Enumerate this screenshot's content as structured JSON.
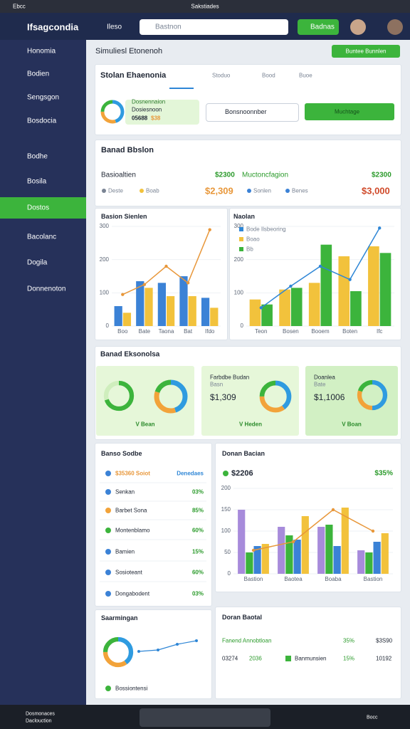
{
  "window": {
    "title_left": "Ebcc",
    "title_center": "Sakstiades"
  },
  "header": {
    "logo": "Ifsagcondia",
    "menu": "Ileso",
    "search_placeholder": "Bastnon",
    "button": "Badnas"
  },
  "sidebar": {
    "items": [
      "Honomia",
      "Bodien",
      "Sengsgon",
      "Bosdocia",
      "Bodhe",
      "Bosila",
      "Dostos",
      "Bacolanc",
      "Dogila",
      "Donnenoton"
    ],
    "active": 6
  },
  "page": {
    "title": "Simuliesl Etonenoh",
    "button": "Buntee Bunnlen"
  },
  "filter_card": {
    "tabs": [
      "Stolan Ehaenonia",
      "Stoduo",
      "Bood",
      "Buoe"
    ],
    "summary": {
      "title": "Dosnennaion",
      "subtitle": "Dosiesnoon",
      "value": "05688",
      "badge": "$38"
    },
    "donut": {
      "type": "pie",
      "values": [
        45,
        30,
        25
      ],
      "colors": [
        "#2f9be0",
        "#f2a33a",
        "#3cb43c"
      ]
    },
    "select": "Bonsnoonnber",
    "button": "Muchtage"
  },
  "balance_card": {
    "title": "Banad Bbslon",
    "row": [
      "Basioaltien",
      "$2300",
      "Muctoncfagion",
      "$2300"
    ],
    "legend": [
      "Deste",
      "Boab",
      "Sonlen",
      "Benes"
    ],
    "amounts": [
      "$2,309",
      "$3,000"
    ]
  },
  "charts": {
    "left": {
      "type": "bar",
      "title": "Basion Sienlen",
      "categories": [
        "Boo",
        "Bate",
        "Taona",
        "Bat",
        "Ifdo"
      ],
      "ylim": [
        0,
        300
      ],
      "yticks": [
        0,
        100,
        200,
        300
      ],
      "series": [
        {
          "color": "#3b82d6",
          "values": [
            60,
            135,
            130,
            150,
            85
          ]
        },
        {
          "color": "#f2c23c",
          "values": [
            40,
            115,
            90,
            90,
            55
          ]
        },
        {
          "type": "line",
          "color": "#e8973a",
          "values": [
            95,
            125,
            180,
            130,
            290
          ]
        }
      ]
    },
    "right": {
      "type": "bar",
      "title": "Naolan",
      "categories": [
        "Teon",
        "Bosen",
        "Booem",
        "Boten",
        "Ifc"
      ],
      "ylim": [
        0,
        300
      ],
      "yticks": [
        0,
        100,
        200,
        300
      ],
      "series": [
        {
          "type": "line",
          "name": "Bode Ilsbeoring",
          "color": "#2e86d6",
          "values": [
            55,
            120,
            180,
            140,
            295
          ]
        },
        {
          "name": "Boao",
          "color": "#f2c23c",
          "values": [
            80,
            110,
            130,
            210,
            240
          ]
        },
        {
          "name": "Bb",
          "color": "#3cb43c",
          "values": [
            65,
            115,
            245,
            105,
            220
          ]
        }
      ]
    },
    "bottom": {
      "type": "bar",
      "title": "Donan Bacian",
      "value": "$2206",
      "change": "$35%",
      "categories": [
        "Bastion",
        "Baotea",
        "Boaba",
        "Bastion"
      ],
      "ylim": [
        0,
        200
      ],
      "yticks": [
        0,
        50,
        100,
        150,
        200
      ],
      "series": [
        {
          "color": "#a78bdb",
          "values": [
            150,
            110,
            110,
            55
          ]
        },
        {
          "color": "#3cb43c",
          "values": [
            50,
            90,
            115,
            50
          ]
        },
        {
          "color": "#3b82d6",
          "values": [
            65,
            80,
            65,
            75
          ]
        },
        {
          "color": "#f2c23c",
          "values": [
            70,
            135,
            155,
            95
          ]
        },
        {
          "type": "line",
          "color": "#e8973a",
          "values": [
            55,
            75,
            150,
            100
          ]
        }
      ]
    }
  },
  "overview_card": {
    "title": "Banad Eksonolsa",
    "cards": [
      {
        "label": "V Bean",
        "donuts": [
          {
            "type": "pie",
            "values": [
              70,
              30
            ],
            "colors": [
              "#3cb43c",
              "#cfeebd"
            ]
          },
          {
            "type": "pie",
            "values": [
              45,
              35,
              20
            ],
            "colors": [
              "#2f9be0",
              "#f2a33a",
              "#3cb43c"
            ]
          }
        ]
      },
      {
        "title": "Farbdbe Budan",
        "subtitle": "Basn",
        "value": "$1,309",
        "label": "V Heden",
        "donuts": [
          {
            "type": "pie",
            "values": [
              40,
              35,
              25
            ],
            "colors": [
              "#2f9be0",
              "#f2a33a",
              "#3cb43c"
            ]
          }
        ]
      },
      {
        "title": "Doanlea",
        "subtitle": "Bate",
        "value": "$1,1006",
        "label": "V Boan",
        "donuts": [
          {
            "type": "pie",
            "values": [
              50,
              30,
              20
            ],
            "colors": [
              "#2f9be0",
              "#f2a33a",
              "#3cb43c"
            ]
          }
        ]
      }
    ]
  },
  "list_card": {
    "title": "Banso Sodbe",
    "rows": [
      [
        "$35360 Soiot",
        "Denedaes"
      ],
      [
        "Senkan",
        "03%"
      ],
      [
        "Barbet Sona",
        "85%"
      ],
      [
        "Montenblamo",
        "60%"
      ],
      [
        "Bamien",
        "15%"
      ],
      [
        "Sosioteant",
        "60%"
      ],
      [
        "Dongabodent",
        "03%"
      ]
    ]
  },
  "summary_card": {
    "title": "Saarmingan",
    "text": "Bossiontensi",
    "donut": {
      "type": "pie",
      "values": [
        40,
        35,
        25
      ],
      "colors": [
        "#2f9be0",
        "#f2a33a",
        "#3cb43c"
      ]
    },
    "sparkline": {
      "type": "line",
      "color": "#2e86d6",
      "ylim": [
        0,
        50
      ],
      "values": [
        30,
        32,
        40,
        45
      ]
    }
  },
  "table_card": {
    "title": "Doran Baotal",
    "rows": [
      [
        "Fanend Annobtloan",
        "35%",
        "$3S90"
      ],
      [
        "03274",
        "2036",
        "Banmunsien",
        "15%",
        "10192"
      ]
    ]
  },
  "taskbar": {
    "left_title": "Dosmonaces",
    "left_subtitle": "Daclouction",
    "right": "Bocc"
  }
}
